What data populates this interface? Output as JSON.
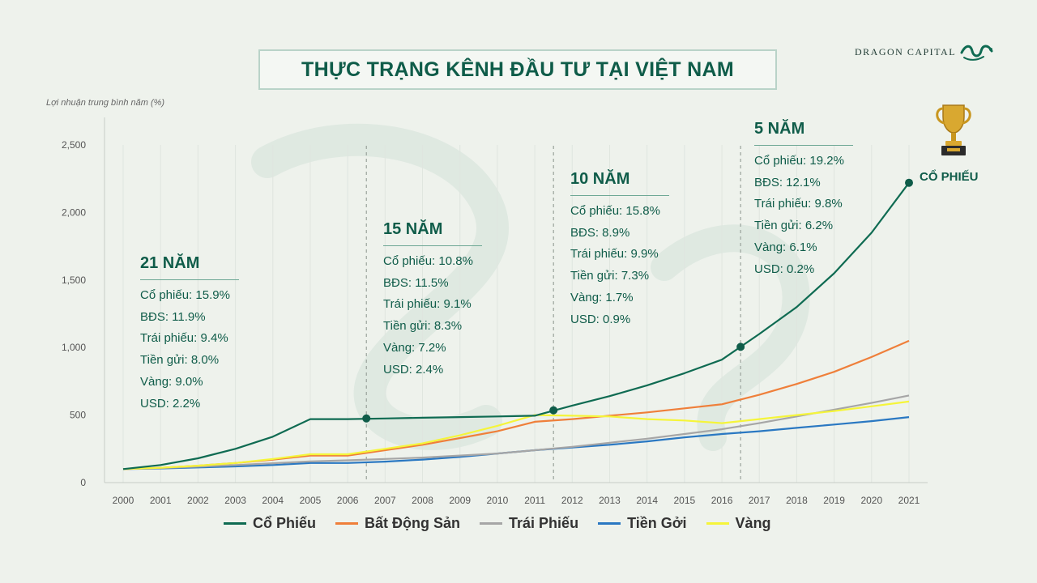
{
  "header": {
    "title": "THỰC TRẠNG KÊNH ĐẦU TƯ TẠI VIỆT NAM",
    "brand": "DRAGON CAPITAL"
  },
  "colors": {
    "primary_green": "#0f5c49",
    "background": "#eef2ec"
  },
  "icons": {
    "trophy": "trophy-icon",
    "brand_logo": "dragon-logo-icon"
  },
  "periods": [
    {
      "title": "21 NĂM",
      "items": [
        "Cổ phiếu: 15.9%",
        "BĐS: 11.9%",
        "Trái phiếu: 9.4%",
        "Tiền gửi: 8.0%",
        "Vàng: 9.0%",
        "USD: 2.2%"
      ]
    },
    {
      "title": "15 NĂM",
      "items": [
        "Cổ phiếu: 10.8%",
        "BĐS: 11.5%",
        "Trái phiếu: 9.1%",
        "Tiền gửi: 8.3%",
        "Vàng: 7.2%",
        "USD: 2.4%"
      ]
    },
    {
      "title": "10 NĂM",
      "items": [
        "Cổ phiếu: 15.8%",
        "BĐS: 8.9%",
        "Trái phiếu: 9.9%",
        "Tiền gửi: 7.3%",
        "Vàng: 1.7%",
        "USD: 0.9%"
      ]
    },
    {
      "title": "5 NĂM",
      "items": [
        "Cổ phiếu: 19.2%",
        "BĐS: 12.1%",
        "Trái phiếu: 9.8%",
        "Tiền gửi: 6.2%",
        "Vàng: 6.1%",
        "USD: 0.2%"
      ]
    }
  ],
  "winner_label": "CỔ PHIẾU",
  "chart_data": {
    "type": "line",
    "title": "THỰC TRẠNG KÊNH ĐẦU TƯ TẠI VIỆT NAM",
    "ylabel": "Lợi nhuận trung bình năm (%)",
    "xlabel": "",
    "categories": [
      "2000",
      "2001",
      "2002",
      "2003",
      "2004",
      "2005",
      "2006",
      "2007",
      "2008",
      "2009",
      "2010",
      "2011",
      "2012",
      "2013",
      "2014",
      "2015",
      "2016",
      "2017",
      "2018",
      "2019",
      "2020",
      "2021"
    ],
    "ylim": [
      0,
      2500
    ],
    "yticks": [
      0,
      500,
      1000,
      1500,
      2000,
      2500
    ],
    "ytick_labels": [
      "0",
      "500",
      "1,000",
      "1,500",
      "2,000",
      "2,500"
    ],
    "grid": "vertical",
    "legend": "bottom",
    "period_dividers": [
      2006.5,
      2011.5,
      2016.5
    ],
    "markers": [
      {
        "x": 2006.5,
        "y": 475
      },
      {
        "x": 2011.5,
        "y": 535
      },
      {
        "x": 2016.5,
        "y": 1005
      },
      {
        "x": 2021,
        "y": 2220
      }
    ],
    "series": [
      {
        "name": "Cổ Phiếu",
        "color": "#0f6b52",
        "values": [
          100,
          130,
          180,
          250,
          340,
          470,
          470,
          475,
          480,
          485,
          490,
          495,
          570,
          640,
          720,
          810,
          910,
          1100,
          1300,
          1550,
          1850,
          2220
        ]
      },
      {
        "name": "Bất Động Sản",
        "color": "#ef7f3a",
        "values": [
          100,
          110,
          125,
          145,
          170,
          200,
          200,
          240,
          280,
          330,
          380,
          450,
          470,
          495,
          520,
          550,
          580,
          650,
          730,
          820,
          930,
          1050
        ]
      },
      {
        "name": "Trái Phiếu",
        "color": "#a6a6a6",
        "values": [
          100,
          108,
          118,
          130,
          143,
          157,
          165,
          175,
          185,
          200,
          215,
          240,
          265,
          295,
          325,
          360,
          395,
          440,
          490,
          540,
          590,
          645
        ]
      },
      {
        "name": "Tiền Gởi",
        "color": "#2a78c2",
        "values": [
          100,
          105,
          112,
          120,
          130,
          145,
          145,
          155,
          170,
          190,
          215,
          240,
          260,
          280,
          305,
          335,
          360,
          380,
          405,
          430,
          455,
          485
        ]
      },
      {
        "name": "Vàng",
        "color": "#f5f53a",
        "values": [
          100,
          110,
          125,
          145,
          175,
          210,
          210,
          250,
          290,
          350,
          420,
          500,
          495,
          490,
          470,
          460,
          440,
          470,
          500,
          530,
          565,
          600
        ]
      }
    ]
  }
}
